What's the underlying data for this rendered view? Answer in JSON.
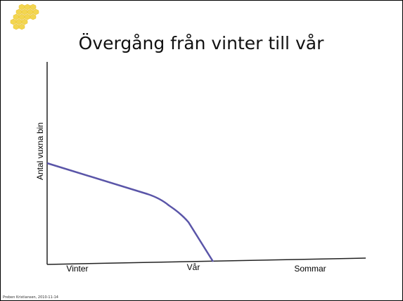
{
  "slide": {
    "title": "Övergång från vinter till vår",
    "y_label": "Antal vuxna bin",
    "x_labels": [
      "Vinter",
      "Vår",
      "Sommar"
    ],
    "footer": "Preben Kristiansen, 2010-11-14"
  }
}
